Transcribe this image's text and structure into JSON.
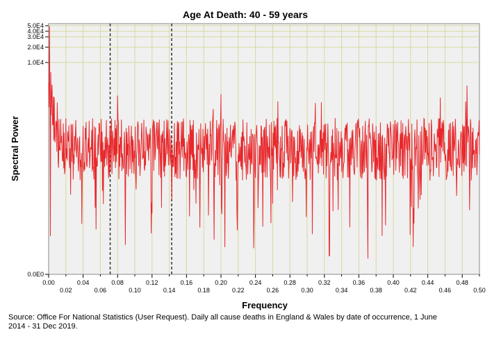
{
  "chart_data": {
    "type": "line",
    "title": "Age At Death: 40 - 59 years",
    "xlabel": "Frequency",
    "ylabel": "Spectral Power",
    "xlim": [
      0.0,
      0.5
    ],
    "y_scale": "log-like",
    "y_ticks": [
      "0.0E0",
      "1.0E4",
      "2.0E4",
      "3.0E4",
      "4.0E4",
      "5.0E4"
    ],
    "x_ticks_top": [
      "0.00",
      "0.04",
      "0.08",
      "0.12",
      "0.16",
      "0.20",
      "0.24",
      "0.28",
      "0.32",
      "0.36",
      "0.40",
      "0.44",
      "0.48"
    ],
    "x_ticks_bottom": [
      "0.02",
      "0.06",
      "0.10",
      "0.14",
      "0.18",
      "0.22",
      "0.26",
      "0.30",
      "0.34",
      "0.38",
      "0.42",
      "0.46",
      "0.50"
    ],
    "reference_lines_x": [
      0.0714,
      0.1428
    ],
    "grid": true,
    "series": [
      {
        "color": "#e8282c",
        "description_points": 1000
      }
    ],
    "colors": {
      "plot_bg": "#f0f0f0",
      "grid": "#d8d8a0",
      "series": "#e8282c",
      "reference": "#333333"
    }
  },
  "source_note": "Source: Office For National Statistics (User Request). Daily all cause deaths in England & Wales by date of occurrence, 1 June 2014 - 31 Dec 2019."
}
